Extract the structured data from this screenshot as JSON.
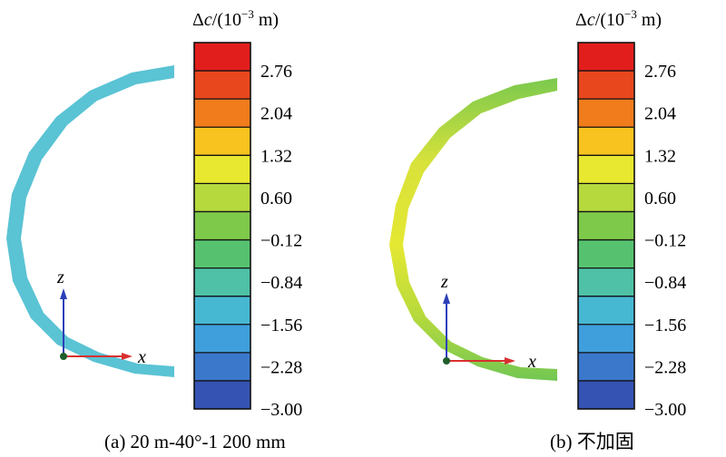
{
  "colorbar": {
    "title_prefix": "Δ",
    "title_var": "c",
    "title_open": "/(10",
    "title_exp": "−3",
    "title_close": " m)",
    "ticks": [
      "2.76",
      "2.04",
      "1.32",
      "0.60",
      "−0.12",
      "−0.84",
      "−1.56",
      "−2.28",
      "−3.00"
    ],
    "band_colors": [
      "#e11e1c",
      "#e8471d",
      "#f07c1c",
      "#f9c31f",
      "#e8e830",
      "#b6d93d",
      "#7ec94a",
      "#56c26f",
      "#4fc1a6",
      "#47b8d2",
      "#3f9fdc",
      "#3b78cc",
      "#3553b3"
    ]
  },
  "panels": [
    {
      "caption": "(a) 20 m-40°-1 200 mm",
      "ring_colors": [
        "#5ac3d4"
      ]
    },
    {
      "caption": "(b) 不加固",
      "ring_colors": [
        "#7ac94e",
        "#e6e832",
        "#d9e23a",
        "#7ac94e"
      ]
    }
  ],
  "axes": {
    "vertical_label": "z",
    "horizontal_label": "x"
  }
}
